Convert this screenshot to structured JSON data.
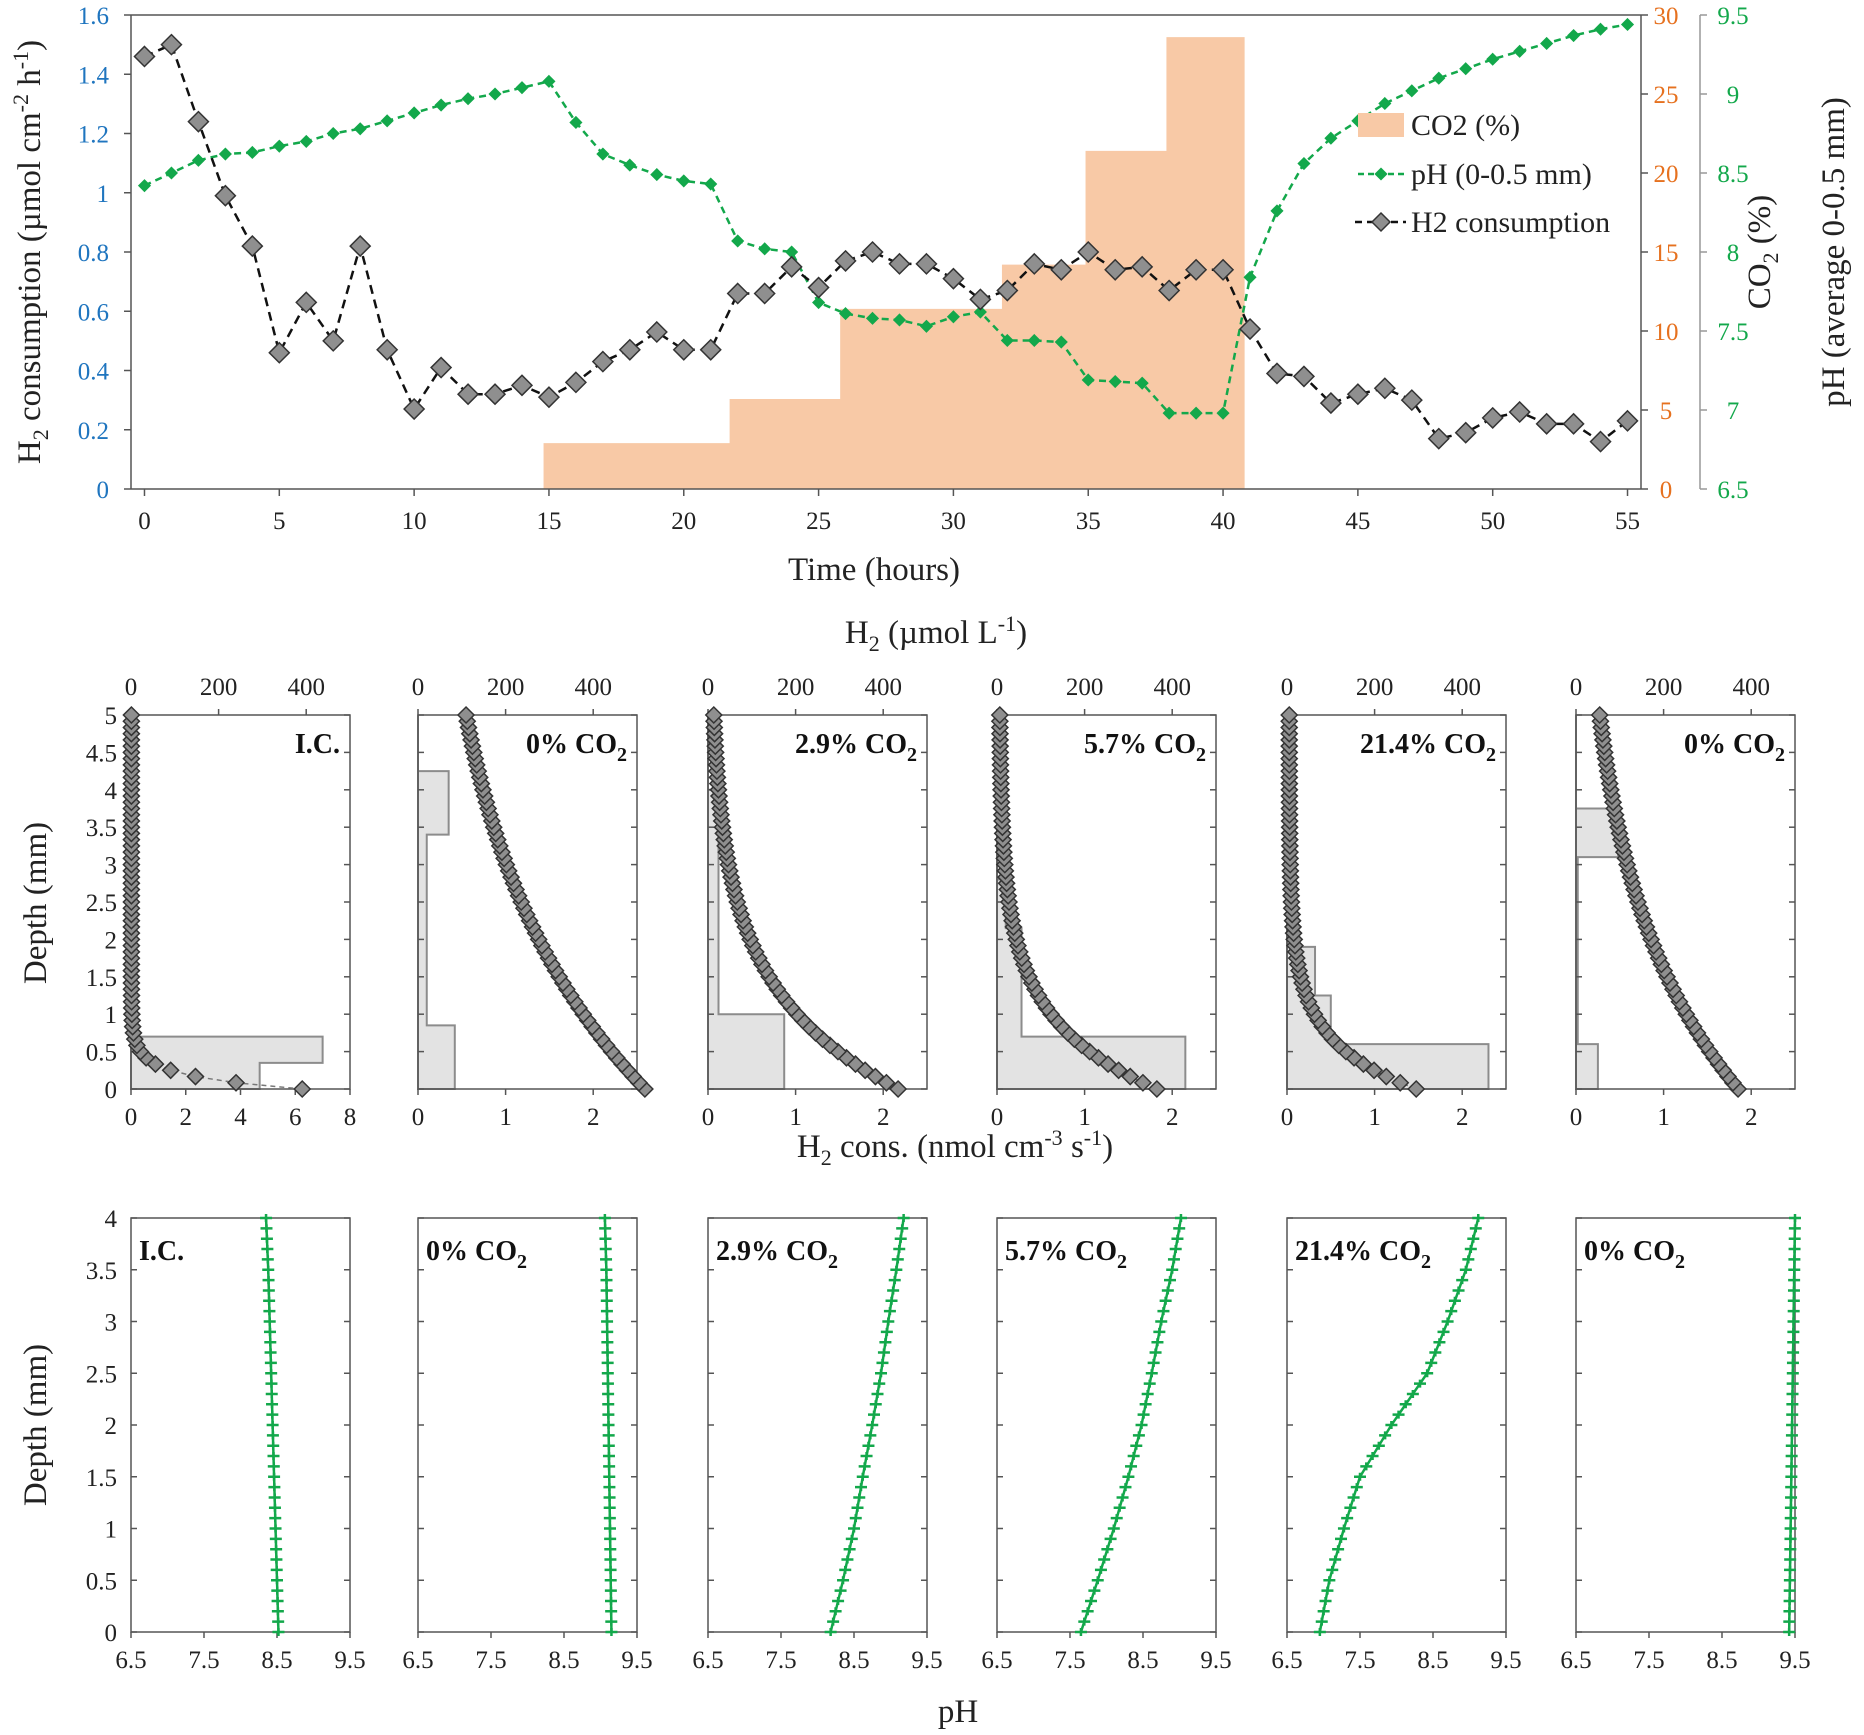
{
  "colors": {
    "h2": "#8f8f8f",
    "h2_line": "#000000",
    "ph": "#13a84b",
    "co2": "#f8c9a6",
    "left_axis": "#1f75bf",
    "co2_axis": "#e6711f",
    "ph_axis": "#13a84b",
    "rate_bar": "#e3e3e3",
    "rate_bar_edge": "#8c8c8c"
  },
  "chart_data": [
    {
      "type": "combo",
      "id": "timeseries",
      "xlabel": "Time (hours)",
      "xlim": [
        -0.5,
        55.5
      ],
      "xticks": [
        "0",
        "5",
        "10",
        "15",
        "20",
        "25",
        "30",
        "35",
        "40",
        "45",
        "50",
        "55"
      ],
      "ylabel_left": {
        "main": "H",
        "sub": "2",
        "rest": " consumption (µmol cm",
        "sup1": "-2",
        "mid": " h",
        "sup2": "-1",
        "end": ")"
      },
      "ylim_left": [
        0,
        1.6
      ],
      "yticks_left": [
        "0",
        "0.2",
        "0.4",
        "0.6",
        "0.8",
        "1",
        "1.2",
        "1.4",
        "1.6"
      ],
      "ylabel_co2": {
        "main": "CO",
        "sub": "2",
        "rest": " (%)"
      },
      "ylim_co2": [
        0,
        30
      ],
      "yticks_co2": [
        "0",
        "5",
        "10",
        "15",
        "20",
        "25",
        "30"
      ],
      "ylabel_ph": "pH (average 0-0.5 mm)",
      "ylim_ph": [
        6.5,
        9.5
      ],
      "yticks_ph": [
        "6.5",
        "7",
        "7.5",
        "8",
        "8.5",
        "9",
        "9.5"
      ],
      "legend": [
        "CO2 (%)",
        "pH (0-0.5 mm)",
        "H2 consumption"
      ],
      "co2_steps": [
        {
          "t0": 0,
          "t1": 14.8,
          "value": 0
        },
        {
          "t0": 14.8,
          "t1": 21.7,
          "value": 2.9
        },
        {
          "t0": 21.7,
          "t1": 25.8,
          "value": 5.7
        },
        {
          "t0": 25.8,
          "t1": 31.8,
          "value": 11.4
        },
        {
          "t0": 31.8,
          "t1": 34.9,
          "value": 14.2
        },
        {
          "t0": 34.9,
          "t1": 37.9,
          "value": 21.4
        },
        {
          "t0": 37.9,
          "t1": 40.8,
          "value": 28.6
        }
      ],
      "ph_series": {
        "name": "pH (0-0.5 mm)",
        "x": [
          0,
          1,
          2,
          3,
          4,
          5,
          6,
          7,
          8,
          9,
          10,
          11,
          12,
          13,
          14,
          15,
          16,
          17,
          18,
          19,
          20,
          21,
          22,
          23,
          24,
          25,
          26,
          27,
          28,
          29,
          30,
          31,
          32,
          33,
          34,
          35,
          36,
          37,
          38,
          39,
          40,
          41,
          42,
          43,
          44,
          45,
          46,
          47,
          48,
          49,
          50,
          51,
          52,
          53,
          54,
          55
        ],
        "y": [
          8.42,
          8.5,
          8.58,
          8.62,
          8.63,
          8.67,
          8.7,
          8.75,
          8.78,
          8.83,
          8.88,
          8.93,
          8.97,
          9.0,
          9.04,
          9.08,
          8.82,
          8.62,
          8.55,
          8.49,
          8.45,
          8.43,
          8.07,
          8.02,
          8.0,
          7.68,
          7.61,
          7.58,
          7.57,
          7.53,
          7.59,
          7.62,
          7.44,
          7.44,
          7.43,
          7.19,
          7.18,
          7.17,
          6.98,
          6.98,
          6.98,
          7.84,
          8.26,
          8.56,
          8.72,
          8.83,
          8.94,
          9.02,
          9.1,
          9.16,
          9.22,
          9.27,
          9.32,
          9.37,
          9.41,
          9.44
        ]
      },
      "h2_series": {
        "name": "H2 consumption",
        "x": [
          0,
          1,
          2,
          3,
          4,
          5,
          6,
          7,
          8,
          9,
          10,
          11,
          12,
          13,
          14,
          15,
          16,
          17,
          18,
          19,
          20,
          21,
          22,
          23,
          24,
          25,
          26,
          27,
          28,
          29,
          30,
          31,
          32,
          33,
          34,
          35,
          36,
          37,
          38,
          39,
          40,
          41,
          42,
          43,
          44,
          45,
          46,
          47,
          48,
          49,
          50,
          51,
          52,
          53,
          54,
          55
        ],
        "y": [
          1.46,
          1.5,
          1.24,
          0.99,
          0.82,
          0.46,
          0.63,
          0.5,
          0.82,
          0.47,
          0.27,
          0.41,
          0.32,
          0.32,
          0.35,
          0.31,
          0.36,
          0.43,
          0.47,
          0.53,
          0.47,
          0.47,
          0.66,
          0.66,
          0.75,
          0.68,
          0.77,
          0.8,
          0.76,
          0.76,
          0.71,
          0.64,
          0.67,
          0.76,
          0.74,
          0.8,
          0.74,
          0.75,
          0.67,
          0.74,
          0.74,
          0.54,
          0.39,
          0.38,
          0.29,
          0.32,
          0.34,
          0.3,
          0.17,
          0.19,
          0.24,
          0.26,
          0.22,
          0.22,
          0.16,
          0.23
        ]
      }
    },
    {
      "type": "depth-profile-panels",
      "id": "h2_profiles",
      "top_axis_label": {
        "main": "H",
        "sub": "2",
        "rest": " (µmol L",
        "sup": "-1",
        "end": ")"
      },
      "bottom_axis_label": {
        "main": "H",
        "sub": "2",
        "rest": " cons.  (nmol cm",
        "sup1": "-3",
        "mid": " s",
        "sup2": "-1",
        "end": ")"
      },
      "ylabel": "Depth (mm)",
      "ylim": [
        0,
        5
      ],
      "yticks": [
        "0",
        "0.5",
        "1",
        "1.5",
        "2",
        "2.5",
        "3",
        "3.5",
        "4",
        "4.5",
        "5"
      ],
      "top_xlim": [
        0,
        500
      ],
      "top_xticks": [
        "0",
        "200",
        "400"
      ],
      "panels": [
        {
          "label": "I.C.",
          "co2": "",
          "bottom_xlim": [
            0,
            8
          ],
          "bottom_xticks": [
            "0",
            "2",
            "4",
            "6",
            "8"
          ],
          "rate_steps": [
            {
              "d0": 0,
              "d1": 0.35,
              "rate": 4.7
            },
            {
              "d0": 0.35,
              "d1": 0.7,
              "rate": 7.0
            },
            {
              "d0": 0.7,
              "d1": 5,
              "rate": 0
            }
          ],
          "conc": {
            "a": 390,
            "b": 0.17,
            "offset": 0.9
          }
        },
        {
          "label": "0% CO",
          "co2": "2",
          "bottom_xlim": [
            0,
            2.5
          ],
          "bottom_xticks": [
            "0",
            "1",
            "2"
          ],
          "rate_steps": [
            {
              "d0": 0,
              "d1": 0.85,
              "rate": 0.42
            },
            {
              "d0": 0.85,
              "d1": 3.4,
              "rate": 0.1
            },
            {
              "d0": 3.4,
              "d1": 4.25,
              "rate": 0.35
            },
            {
              "d0": 4.25,
              "d1": 5,
              "rate": 0
            }
          ],
          "conc": {
            "a": 510,
            "b": 3.1,
            "offset": 8
          }
        },
        {
          "label": "2.9% CO",
          "co2": "2",
          "bottom_xlim": [
            0,
            2.5
          ],
          "bottom_xticks": [
            "0",
            "1",
            "2"
          ],
          "rate_steps": [
            {
              "d0": 0,
              "d1": 1.0,
              "rate": 0.87
            },
            {
              "d0": 1.0,
              "d1": 4.0,
              "rate": 0.12
            },
            {
              "d0": 4.0,
              "d1": 5,
              "rate": 0
            }
          ],
          "conc": {
            "a": 430,
            "b": 1.3,
            "offset": 4
          }
        },
        {
          "label": "5.7% CO",
          "co2": "2",
          "bottom_xlim": [
            0,
            2.5
          ],
          "bottom_xticks": [
            "0",
            "1",
            "2"
          ],
          "rate_steps": [
            {
              "d0": 0,
              "d1": 0.7,
              "rate": 2.15
            },
            {
              "d0": 0.7,
              "d1": 2.15,
              "rate": 0.28
            },
            {
              "d0": 2.15,
              "d1": 2.8,
              "rate": 0.1
            },
            {
              "d0": 2.8,
              "d1": 5,
              "rate": 0
            }
          ],
          "conc": {
            "a": 360,
            "b": 0.9,
            "offset": 5
          }
        },
        {
          "label": "21.4% CO",
          "co2": "2",
          "bottom_xlim": [
            0,
            2.5
          ],
          "bottom_xticks": [
            "0",
            "1",
            "2"
          ],
          "rate_steps": [
            {
              "d0": 0,
              "d1": 0.6,
              "rate": 2.3
            },
            {
              "d0": 0.6,
              "d1": 1.25,
              "rate": 0.5
            },
            {
              "d0": 1.25,
              "d1": 1.9,
              "rate": 0.32
            },
            {
              "d0": 1.9,
              "d1": 5,
              "rate": 0
            }
          ],
          "conc": {
            "a": 290,
            "b": 0.62,
            "offset": 5
          }
        },
        {
          "label": "0% CO",
          "co2": "2",
          "bottom_xlim": [
            0,
            2.5
          ],
          "bottom_xticks": [
            "0",
            "1",
            "2"
          ],
          "rate_steps": [
            {
              "d0": 0,
              "d1": 0.6,
              "rate": 0.25
            },
            {
              "d0": 0.6,
              "d1": 3.1,
              "rate": 0.02
            },
            {
              "d0": 3.1,
              "d1": 3.75,
              "rate": 0.48
            },
            {
              "d0": 3.75,
              "d1": 5,
              "rate": 0
            }
          ],
          "conc": {
            "a": 370,
            "b": 2.6,
            "offset": 0
          }
        }
      ]
    },
    {
      "type": "depth-profile-panels",
      "id": "ph_profiles",
      "xlabel": "pH",
      "ylabel": "Depth (mm)",
      "xlim": [
        6.5,
        9.5
      ],
      "xticks": [
        "6.5",
        "7.5",
        "8.5",
        "9.5"
      ],
      "ylim": [
        0,
        4
      ],
      "yticks": [
        "0",
        "0.5",
        "1",
        "1.5",
        "2",
        "2.5",
        "3",
        "3.5",
        "4"
      ],
      "panels": [
        {
          "label": "I.C.",
          "co2": "",
          "depth": [
            0,
            0.5,
            1,
            1.5,
            2,
            2.5,
            3,
            3.5,
            4
          ],
          "ph": [
            8.52,
            8.5,
            8.48,
            8.46,
            8.44,
            8.42,
            8.4,
            8.38,
            8.35
          ]
        },
        {
          "label": "0% CO",
          "co2": "2",
          "depth": [
            0,
            0.5,
            1,
            1.5,
            2,
            2.5,
            3,
            3.5,
            4
          ],
          "ph": [
            9.15,
            9.14,
            9.13,
            9.12,
            9.11,
            9.1,
            9.09,
            9.08,
            9.06
          ]
        },
        {
          "label": "2.9% CO",
          "co2": "2",
          "depth": [
            0,
            0.5,
            1,
            1.5,
            2,
            2.5,
            3,
            3.5,
            4
          ],
          "ph": [
            8.18,
            8.35,
            8.5,
            8.62,
            8.75,
            8.87,
            8.97,
            9.08,
            9.18
          ]
        },
        {
          "label": "5.7% CO",
          "co2": "2",
          "depth": [
            0,
            0.5,
            1,
            1.5,
            2,
            2.5,
            3,
            3.5,
            4
          ],
          "ph": [
            7.65,
            7.88,
            8.1,
            8.3,
            8.48,
            8.62,
            8.75,
            8.9,
            9.02
          ]
        },
        {
          "label": "21.4% CO",
          "co2": "2",
          "depth": [
            0,
            0.5,
            1,
            1.5,
            2,
            2.5,
            3,
            3.5,
            4
          ],
          "ph": [
            6.95,
            7.08,
            7.28,
            7.5,
            7.93,
            8.42,
            8.7,
            8.95,
            9.12
          ]
        },
        {
          "label": "0% CO",
          "co2": "2",
          "depth": [
            0,
            0.5,
            1,
            1.5,
            2,
            2.5,
            3,
            3.5,
            4
          ],
          "ph": [
            9.42,
            9.43,
            9.44,
            9.45,
            9.46,
            9.47,
            9.48,
            9.49,
            9.5
          ]
        }
      ]
    }
  ]
}
